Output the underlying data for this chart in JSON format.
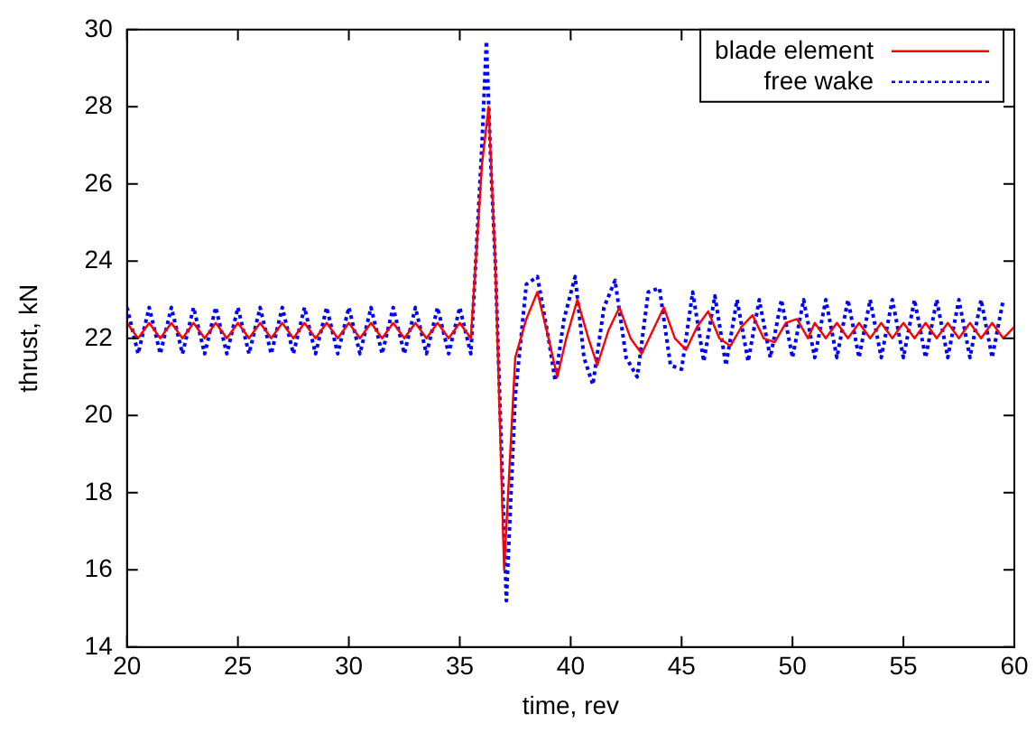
{
  "chart_data": {
    "type": "line",
    "xlabel": "time, rev",
    "ylabel": "thrust, kN",
    "xlim": [
      20,
      60
    ],
    "xticks": [
      20,
      25,
      30,
      35,
      40,
      45,
      50,
      55,
      60
    ],
    "ylim": [
      14,
      30
    ],
    "yticks": [
      14,
      16,
      18,
      20,
      22,
      24,
      26,
      28,
      30
    ],
    "grid": false,
    "legend": "top right",
    "marker": "none",
    "series": [
      {
        "name": "blade element",
        "color": "#ff0000",
        "line_style": "solid",
        "x": [
          20,
          20.5,
          21,
          21.5,
          22,
          22.5,
          23,
          23.5,
          24,
          24.5,
          25,
          25.5,
          26,
          26.5,
          27,
          27.5,
          28,
          28.5,
          29,
          29.5,
          30,
          30.5,
          31,
          31.5,
          32,
          32.5,
          33,
          33.5,
          34,
          34.5,
          35,
          35.5,
          36,
          36.3,
          36.6,
          37,
          37.5,
          38,
          38.5,
          39,
          39.4,
          39.8,
          40.3,
          40.8,
          41.2,
          41.7,
          42.2,
          42.7,
          43.2,
          43.7,
          44.2,
          44.7,
          45.2,
          45.7,
          46.2,
          46.7,
          47.2,
          47.7,
          48.2,
          48.7,
          49.2,
          49.7,
          50.2,
          50.7,
          51,
          51.5,
          52,
          52.5,
          53,
          53.5,
          54,
          54.5,
          55,
          55.5,
          56,
          56.5,
          57,
          57.5,
          58,
          58.5,
          59,
          59.5,
          60
        ],
        "values": [
          22.4,
          22,
          22.4,
          22,
          22.4,
          22,
          22.4,
          22,
          22.4,
          22,
          22.4,
          22,
          22.4,
          22,
          22.4,
          22,
          22.4,
          22,
          22.4,
          22,
          22.4,
          22,
          22.4,
          22,
          22.4,
          22,
          22.4,
          22,
          22.4,
          22,
          22.4,
          22,
          26.5,
          28,
          24,
          16,
          21.5,
          22.5,
          23.2,
          22,
          21,
          22,
          23,
          22,
          21.3,
          22.2,
          22.8,
          22,
          21.6,
          22.2,
          22.8,
          22,
          21.7,
          22.3,
          22.7,
          22,
          21.8,
          22.3,
          22.6,
          22,
          21.9,
          22.4,
          22.5,
          22,
          22.4,
          22,
          22.4,
          22,
          22.4,
          22,
          22.4,
          22,
          22.4,
          22,
          22.4,
          22,
          22.4,
          22,
          22.4,
          22,
          22.4,
          22,
          22.3
        ]
      },
      {
        "name": "free wake",
        "color": "#0000ff",
        "line_style": "dotted",
        "x": [
          20,
          20.5,
          21,
          21.5,
          22,
          22.5,
          23,
          23.5,
          24,
          24.5,
          25,
          25.5,
          26,
          26.5,
          27,
          27.5,
          28,
          28.5,
          29,
          29.5,
          30,
          30.5,
          31,
          31.5,
          32,
          32.5,
          33,
          33.5,
          34,
          34.5,
          35,
          35.5,
          36,
          36.2,
          36.4,
          36.6,
          37,
          37.1,
          37.5,
          38,
          38.5,
          39,
          39.3,
          39.7,
          40.2,
          40.6,
          41,
          41.5,
          42,
          42.5,
          43,
          43.5,
          44,
          44.5,
          45,
          45.5,
          46,
          46.5,
          47,
          47.5,
          48,
          48.5,
          49,
          49.5,
          50,
          50.5,
          51,
          51.5,
          52,
          52.5,
          53,
          53.5,
          54,
          54.5,
          55,
          55.5,
          56,
          56.5,
          57,
          57.5,
          58,
          58.5,
          59,
          59.5
        ],
        "values": [
          22.8,
          21.6,
          22.8,
          21.6,
          22.8,
          21.6,
          22.8,
          21.6,
          22.8,
          21.6,
          22.8,
          21.6,
          22.8,
          21.6,
          22.8,
          21.6,
          22.8,
          21.6,
          22.8,
          21.6,
          22.8,
          21.6,
          22.8,
          21.6,
          22.8,
          21.6,
          22.8,
          21.6,
          22.8,
          21.6,
          22.8,
          21.6,
          27,
          29.7,
          26.5,
          24,
          17,
          15.2,
          20.5,
          23.4,
          23.6,
          22,
          20.9,
          22.5,
          23.6,
          21.5,
          20.8,
          22.8,
          23.5,
          21.5,
          21,
          23.2,
          23.3,
          21.3,
          21.2,
          23.2,
          21.4,
          23.1,
          21.3,
          23,
          21.4,
          23,
          21.5,
          23,
          21.5,
          23,
          21.5,
          23,
          21.5,
          23,
          21.5,
          23,
          21.5,
          23,
          21.5,
          23,
          21.5,
          23,
          21.5,
          23,
          21.5,
          23,
          21.5,
          23
        ]
      }
    ]
  }
}
